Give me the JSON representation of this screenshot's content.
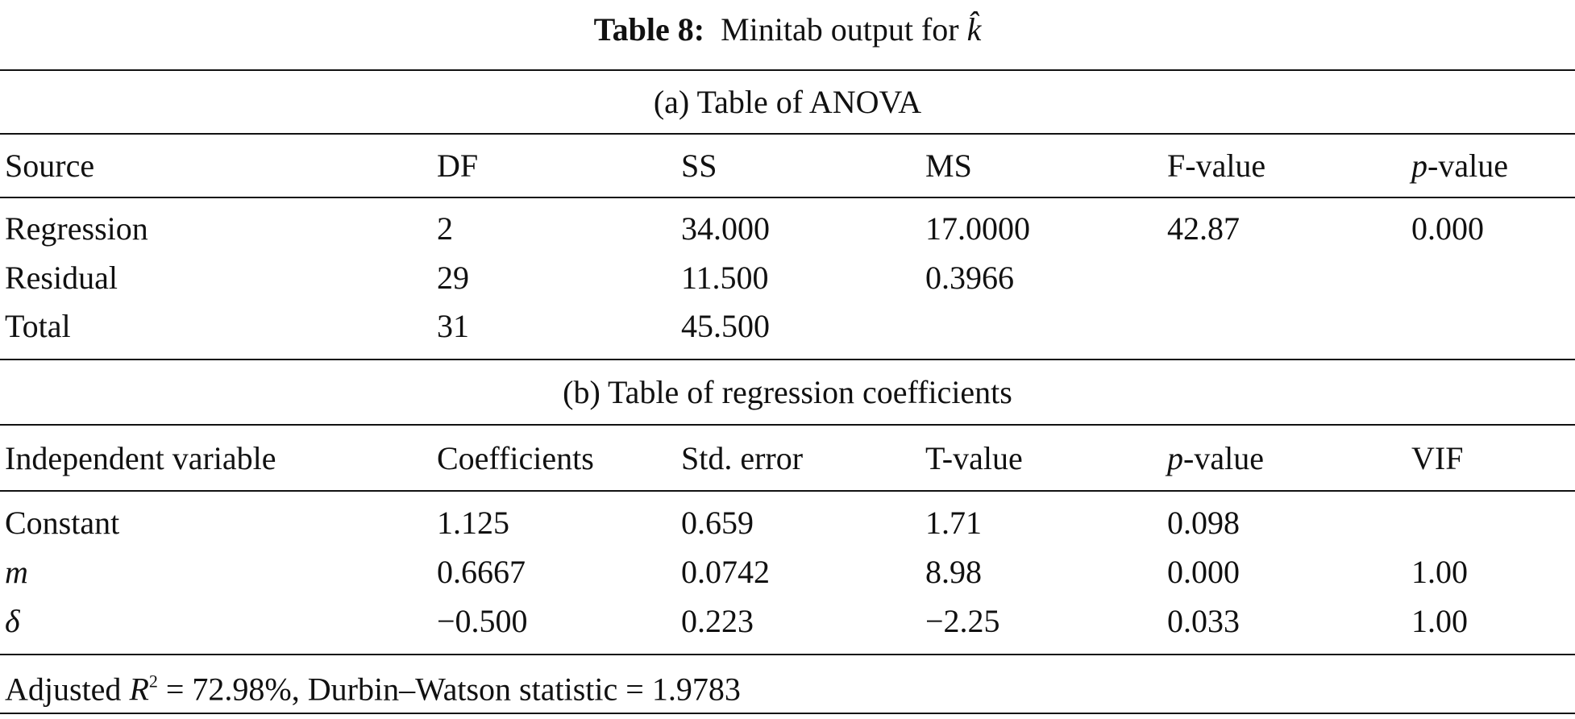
{
  "title": {
    "label": "Table 8:",
    "text": "Minitab output for",
    "symbol": "k̂"
  },
  "anova": {
    "caption": "(a) Table of ANOVA",
    "header": [
      "Source",
      "DF",
      "SS",
      "MS",
      "F-value",
      [
        "p",
        "-value"
      ]
    ],
    "rows": [
      [
        "Regression",
        "2",
        "34.000",
        "17.0000",
        "42.87",
        "0.000"
      ],
      [
        "Residual",
        "29",
        "11.500",
        "0.3966"
      ],
      [
        "Total",
        "31",
        "45.500"
      ]
    ]
  },
  "coefficients": {
    "caption": "(b) Table of regression coefficients",
    "header": [
      "Independent variable",
      "Coefficients",
      "Std. error",
      "T-value",
      [
        "p",
        "-value"
      ],
      "VIF"
    ],
    "rows": [
      [
        "Constant",
        "1.125",
        "0.659",
        "1.71",
        "0.098"
      ],
      [
        "m",
        "0.6667",
        "0.0742",
        "8.98",
        "0.000",
        "1.00"
      ],
      [
        "δ",
        "−0.500",
        "0.223",
        "−2.25",
        "0.033",
        "1.00"
      ]
    ]
  },
  "footer": {
    "before": "Adjusted",
    "symbol": "R",
    "exponent": "2",
    "after": "= 72.98%, Durbin–Watson statistic = 1.9783"
  }
}
